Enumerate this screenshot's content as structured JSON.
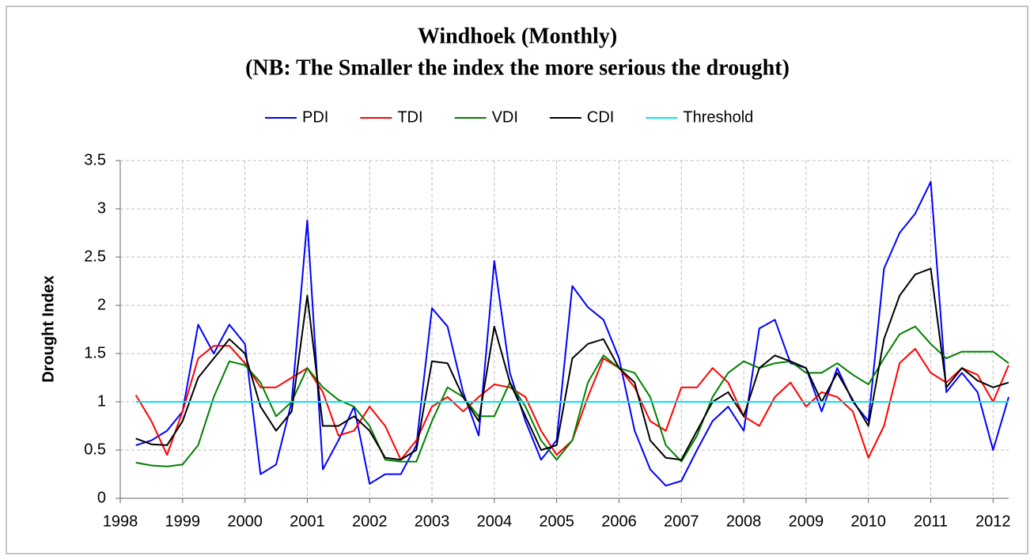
{
  "chart_data": {
    "type": "line",
    "title": "Windhoek (Monthly)",
    "subtitle": "(NB: The Smaller the index the more serious the drought)",
    "y_label": "Drought Index",
    "x": [
      1998.25,
      1998.5,
      1998.75,
      1999,
      1999.25,
      1999.5,
      1999.75,
      2000,
      2000.25,
      2000.5,
      2000.75,
      2001,
      2001.25,
      2001.5,
      2001.75,
      2002,
      2002.25,
      2002.5,
      2002.75,
      2003,
      2003.25,
      2003.5,
      2003.75,
      2004,
      2004.25,
      2004.5,
      2004.75,
      2005,
      2005.25,
      2005.5,
      2005.75,
      2006,
      2006.25,
      2006.5,
      2006.75,
      2007,
      2007.25,
      2007.5,
      2007.75,
      2008,
      2008.25,
      2008.5,
      2008.75,
      2009,
      2009.25,
      2009.5,
      2009.75,
      2010,
      2010.25,
      2010.5,
      2010.75,
      2011,
      2011.25,
      2011.5,
      2011.75,
      2012,
      2012.25
    ],
    "series": [
      {
        "name": "PDI",
        "color": "#0000ff",
        "values": [
          0.55,
          0.6,
          0.7,
          0.9,
          1.8,
          1.5,
          1.8,
          1.6,
          0.25,
          0.35,
          1.0,
          2.88,
          0.3,
          0.6,
          0.95,
          0.15,
          0.25,
          0.25,
          0.55,
          1.97,
          1.78,
          1.1,
          0.65,
          2.46,
          1.3,
          0.8,
          0.4,
          0.6,
          2.2,
          1.98,
          1.85,
          1.45,
          0.7,
          0.3,
          0.13,
          0.18,
          0.5,
          0.8,
          0.95,
          0.7,
          1.76,
          1.85,
          1.4,
          1.35,
          0.9,
          1.35,
          1.0,
          0.8,
          2.38,
          2.75,
          2.95,
          3.28,
          1.1,
          1.3,
          1.1,
          0.5,
          1.05
        ]
      },
      {
        "name": "TDI",
        "color": "#ff0000",
        "values": [
          1.07,
          0.8,
          0.45,
          0.9,
          1.45,
          1.58,
          1.58,
          1.4,
          1.15,
          1.15,
          1.25,
          1.35,
          1.1,
          0.65,
          0.7,
          0.95,
          0.75,
          0.4,
          0.6,
          0.95,
          1.05,
          0.9,
          1.05,
          1.18,
          1.15,
          1.05,
          0.7,
          0.45,
          0.6,
          1.05,
          1.45,
          1.35,
          1.15,
          0.8,
          0.7,
          1.15,
          1.15,
          1.35,
          1.2,
          0.85,
          0.75,
          1.05,
          1.2,
          0.95,
          1.1,
          1.05,
          0.9,
          0.42,
          0.75,
          1.4,
          1.55,
          1.3,
          1.2,
          1.35,
          1.28,
          1.0,
          1.38
        ]
      },
      {
        "name": "VDI",
        "color": "#008000",
        "values": [
          0.37,
          0.34,
          0.33,
          0.35,
          0.55,
          1.05,
          1.42,
          1.38,
          1.2,
          0.85,
          1.0,
          1.35,
          1.15,
          1.02,
          0.95,
          0.75,
          0.4,
          0.38,
          0.38,
          0.8,
          1.15,
          1.05,
          0.85,
          0.85,
          1.2,
          0.95,
          0.6,
          0.4,
          0.6,
          1.2,
          1.48,
          1.35,
          1.3,
          1.05,
          0.55,
          0.38,
          0.65,
          1.05,
          1.3,
          1.42,
          1.35,
          1.4,
          1.42,
          1.3,
          1.3,
          1.4,
          1.28,
          1.18,
          1.45,
          1.7,
          1.78,
          1.6,
          1.45,
          1.52,
          1.52,
          1.52,
          1.4
        ]
      },
      {
        "name": "CDI",
        "color": "#000000",
        "values": [
          0.62,
          0.56,
          0.55,
          0.8,
          1.25,
          1.45,
          1.65,
          1.5,
          0.95,
          0.7,
          0.9,
          2.1,
          0.75,
          0.75,
          0.85,
          0.7,
          0.42,
          0.4,
          0.5,
          1.42,
          1.4,
          1.05,
          0.8,
          1.78,
          1.2,
          0.85,
          0.5,
          0.55,
          1.45,
          1.6,
          1.65,
          1.35,
          1.2,
          0.6,
          0.42,
          0.4,
          0.7,
          1.0,
          1.1,
          0.85,
          1.35,
          1.48,
          1.42,
          1.35,
          1.0,
          1.3,
          1.02,
          0.75,
          1.65,
          2.1,
          2.32,
          2.38,
          1.15,
          1.35,
          1.22,
          1.15,
          1.2
        ]
      },
      {
        "name": "Threshold",
        "color": "#00e5ee",
        "values": [
          1,
          1,
          1,
          1,
          1,
          1,
          1,
          1,
          1,
          1,
          1,
          1,
          1,
          1,
          1,
          1,
          1,
          1,
          1,
          1,
          1,
          1,
          1,
          1,
          1,
          1,
          1,
          1,
          1,
          1,
          1,
          1,
          1,
          1,
          1,
          1,
          1,
          1,
          1,
          1,
          1,
          1,
          1,
          1,
          1,
          1,
          1,
          1,
          1,
          1,
          1,
          1,
          1,
          1,
          1,
          1,
          1
        ]
      }
    ],
    "xlim": [
      1998,
      2012.25
    ],
    "xticks": [
      1998,
      1999,
      2000,
      2001,
      2002,
      2003,
      2004,
      2005,
      2006,
      2007,
      2008,
      2009,
      2010,
      2011,
      2012
    ],
    "ylim": [
      0,
      3.5
    ],
    "yticks": [
      0,
      0.5,
      1,
      1.5,
      2,
      2.5,
      3,
      3.5
    ],
    "grid": true,
    "legend": "top"
  }
}
